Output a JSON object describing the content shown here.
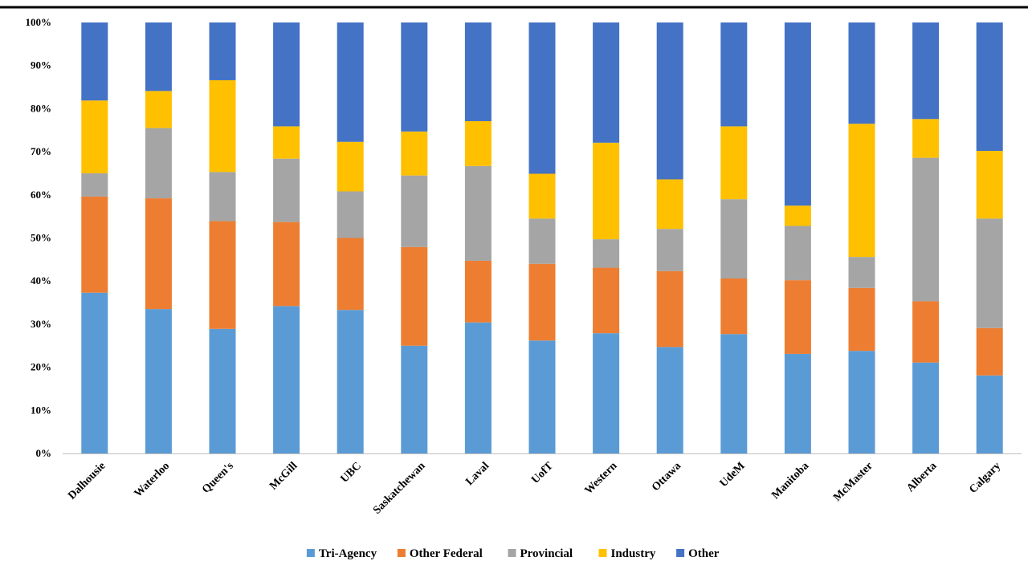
{
  "chart_data": {
    "type": "bar",
    "stacked": true,
    "percent_axis": true,
    "ylim": [
      0,
      100
    ],
    "yticks": [
      "0%",
      "10%",
      "20%",
      "30%",
      "40%",
      "50%",
      "60%",
      "70%",
      "80%",
      "90%",
      "100%"
    ],
    "grid": false,
    "legend_position": "bottom",
    "categories": [
      "Dalhousie",
      "Waterloo",
      "Queen's",
      "McGill",
      "UBC",
      "Saskatchewan",
      "Laval",
      "UofT",
      "Western",
      "Ottawa",
      "UdeM",
      "Manitoba",
      "McMaster",
      "Alberta",
      "Calgary"
    ],
    "series": [
      {
        "name": "Tri-Agency",
        "color": "#5B9BD5",
        "values": [
          37.3,
          33.5,
          28.9,
          34.2,
          33.3,
          25.0,
          30.4,
          26.2,
          27.9,
          24.7,
          27.7,
          23.1,
          23.8,
          21.1,
          18.1
        ]
      },
      {
        "name": "Other Federal",
        "color": "#ED7D31",
        "values": [
          22.3,
          25.7,
          25.0,
          19.5,
          16.7,
          22.9,
          14.3,
          17.8,
          15.2,
          17.6,
          12.9,
          17.1,
          14.6,
          14.2,
          11.0
        ]
      },
      {
        "name": "Provincial",
        "color": "#A5A5A5",
        "values": [
          5.4,
          16.3,
          11.4,
          14.7,
          10.8,
          16.6,
          22.0,
          10.5,
          6.6,
          9.8,
          18.4,
          12.6,
          7.2,
          33.3,
          25.4
        ]
      },
      {
        "name": "Industry",
        "color": "#FFC000",
        "values": [
          16.9,
          8.6,
          21.3,
          7.5,
          11.5,
          10.2,
          10.4,
          10.4,
          22.4,
          11.5,
          16.9,
          4.7,
          30.9,
          9.0,
          15.7
        ]
      },
      {
        "name": "Other",
        "color": "#4472C4",
        "values": [
          18.1,
          15.9,
          13.4,
          24.1,
          27.7,
          25.3,
          22.9,
          35.1,
          27.9,
          36.4,
          24.1,
          42.5,
          23.5,
          22.4,
          29.8
        ]
      }
    ]
  }
}
